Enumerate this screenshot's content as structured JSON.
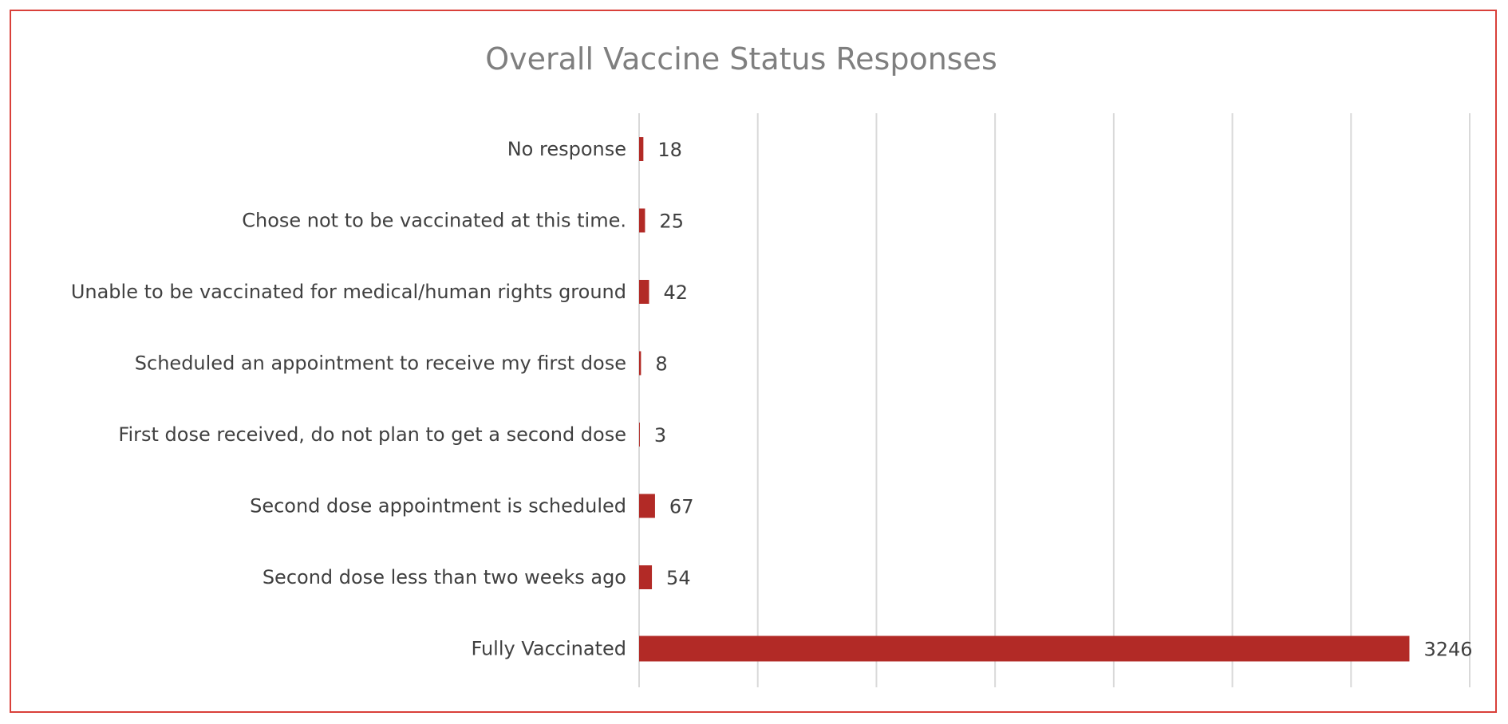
{
  "chart_data": {
    "type": "bar",
    "orientation": "horizontal",
    "title": "Overall Vaccine Status Responses",
    "xlabel": "",
    "ylabel": "",
    "categories": [
      "No response",
      "Chose not to be vaccinated at this time.",
      "Unable to be vaccinated for medical/human rights ground",
      "Scheduled an appointment to receive my first dose",
      "First dose received, do not plan to get a second dose",
      "Second dose appointment is scheduled",
      "Second dose less than two weeks ago",
      "Fully Vaccinated"
    ],
    "values": [
      18,
      25,
      42,
      8,
      3,
      67,
      54,
      3246
    ],
    "xlim": [
      0,
      3500
    ],
    "x_gridline_step": 500,
    "grid": true,
    "legend": "none",
    "data_labels": true,
    "bar_color": "#b22a26",
    "frame_color": "#d9403a"
  }
}
